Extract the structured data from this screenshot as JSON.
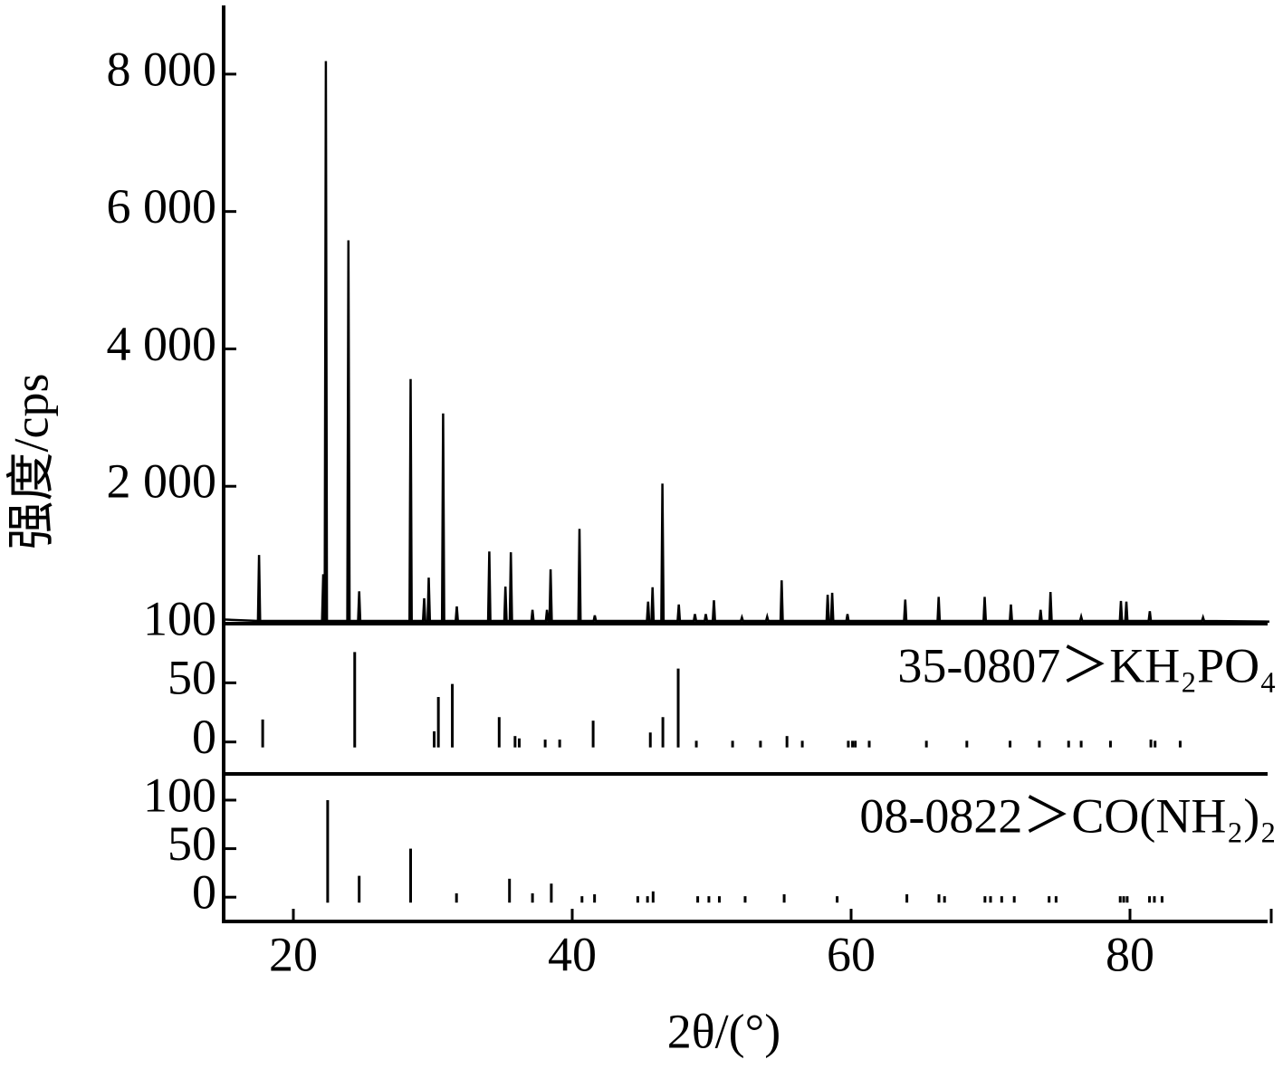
{
  "chart_data": [
    {
      "type": "line",
      "y_label": "强度/cps",
      "color": "#000000",
      "xlim": [
        15,
        90
      ],
      "ylim": [
        0,
        9000
      ],
      "yticks": [
        {
          "value": 2000,
          "label": "2 000"
        },
        {
          "value": 4000,
          "label": "4 000"
        },
        {
          "value": 6000,
          "label": "6 000"
        },
        {
          "value": 8000,
          "label": "8 000"
        }
      ],
      "x": [
        15,
        17.46,
        17.54,
        17.62,
        22.06,
        22.14,
        22.22,
        22.25,
        22.33,
        22.41,
        23.87,
        23.95,
        24.03,
        24.64,
        24.72,
        24.8,
        28.33,
        28.41,
        28.49,
        29.3,
        29.38,
        29.46,
        29.63,
        29.71,
        29.79,
        30.66,
        30.74,
        30.82,
        31.64,
        31.72,
        31.8,
        33.97,
        34.05,
        34.13,
        35.13,
        35.21,
        35.29,
        35.52,
        35.6,
        35.68,
        37.07,
        37.15,
        37.23,
        38.11,
        38.19,
        38.27,
        38.37,
        38.45,
        38.53,
        40.44,
        40.52,
        40.6,
        41.54,
        41.62,
        41.7,
        45.36,
        45.44,
        45.52,
        45.68,
        45.76,
        45.84,
        46.39,
        46.47,
        46.55,
        47.56,
        47.64,
        47.72,
        48.72,
        48.8,
        48.88,
        49.5,
        49.58,
        49.66,
        50.08,
        50.16,
        50.24,
        52.09,
        52.17,
        52.25,
        53.9,
        53.98,
        54.06,
        54.94,
        55.02,
        55.1,
        58.24,
        58.32,
        58.4,
        58.56,
        58.64,
        58.72,
        59.66,
        59.74,
        59.82,
        63.8,
        63.88,
        63.96,
        66.2,
        66.28,
        66.36,
        69.5,
        69.58,
        69.66,
        71.38,
        71.46,
        71.54,
        73.51,
        73.59,
        73.67,
        74.22,
        74.3,
        74.38,
        76.42,
        76.5,
        76.58,
        79.27,
        79.35,
        79.43,
        79.66,
        79.74,
        79.82,
        81.34,
        81.42,
        81.5,
        85.16,
        85.24,
        85.32,
        90
      ],
      "values": [
        60,
        40,
        1000,
        40,
        40,
        720,
        40,
        40,
        8190,
        40,
        40,
        5580,
        40,
        40,
        470,
        40,
        40,
        3560,
        40,
        40,
        370,
        40,
        40,
        670,
        40,
        40,
        3060,
        40,
        40,
        250,
        40,
        40,
        1050,
        40,
        40,
        540,
        40,
        40,
        1040,
        40,
        40,
        200,
        40,
        40,
        200,
        40,
        40,
        790,
        40,
        40,
        1380,
        40,
        40,
        120,
        40,
        40,
        320,
        40,
        40,
        530,
        40,
        40,
        2040,
        40,
        40,
        280,
        40,
        40,
        140,
        40,
        40,
        140,
        40,
        40,
        340,
        40,
        40,
        90,
        40,
        40,
        100,
        40,
        40,
        630,
        40,
        40,
        420,
        40,
        40,
        450,
        40,
        40,
        140,
        40,
        40,
        350,
        40,
        40,
        390,
        40,
        40,
        390,
        40,
        40,
        280,
        40,
        40,
        200,
        40,
        40,
        460,
        40,
        40,
        100,
        40,
        40,
        330,
        40,
        40,
        320,
        40,
        40,
        180,
        40,
        40,
        90,
        40,
        30
      ]
    },
    {
      "type": "stick",
      "annotation": "35-0807＞KH₂PO₄",
      "color": "#000000",
      "xlim": [
        15,
        90
      ],
      "ylim": [
        -27,
        100
      ],
      "yticks": [
        0,
        50,
        100
      ],
      "x": [
        17.8,
        24.4,
        30.1,
        30.4,
        31.4,
        34.76,
        35.9,
        36.2,
        38.06,
        39.1,
        41.5,
        45.6,
        46.5,
        47.6,
        48.9,
        51.5,
        53.5,
        55.4,
        56.5,
        59.8,
        60.1,
        60.3,
        61.3,
        65.4,
        68.3,
        71.4,
        73.5,
        75.6,
        76.5,
        78.6,
        81.5,
        81.8,
        83.6
      ],
      "values": [
        19,
        76,
        9,
        38,
        49,
        21,
        5,
        3,
        2,
        2,
        18,
        8,
        21,
        62,
        1,
        1,
        1,
        5,
        1,
        1,
        1,
        1,
        1,
        1,
        1,
        1,
        1,
        1,
        1,
        1,
        2,
        1,
        1
      ]
    },
    {
      "type": "stick",
      "annotation": "08-0822＞CO(NH₂)₂",
      "x_label": "2θ/(°)",
      "color": "#000000",
      "xlim": [
        15,
        90
      ],
      "ylim": [
        -25,
        127
      ],
      "yticks": [
        0,
        50,
        100
      ],
      "xticks": [
        20,
        40,
        60,
        80
      ],
      "x": [
        22.46,
        24.72,
        28.41,
        31.7,
        35.5,
        37.15,
        38.5,
        40.7,
        41.6,
        44.7,
        45.4,
        45.8,
        49.0,
        49.8,
        50.55,
        52.4,
        55.2,
        59.0,
        64.0,
        66.3,
        66.7,
        69.6,
        70.0,
        70.8,
        71.7,
        74.2,
        74.7,
        79.3,
        79.55,
        79.8,
        81.4,
        81.75,
        82.3
      ],
      "values": [
        100,
        22,
        50,
        4,
        19,
        4,
        14,
        1,
        3,
        1,
        1,
        6,
        1,
        1,
        1,
        1,
        3,
        1,
        3,
        3,
        1,
        1,
        1,
        1,
        1,
        1,
        1,
        1,
        1,
        1,
        1,
        1,
        1
      ]
    }
  ]
}
